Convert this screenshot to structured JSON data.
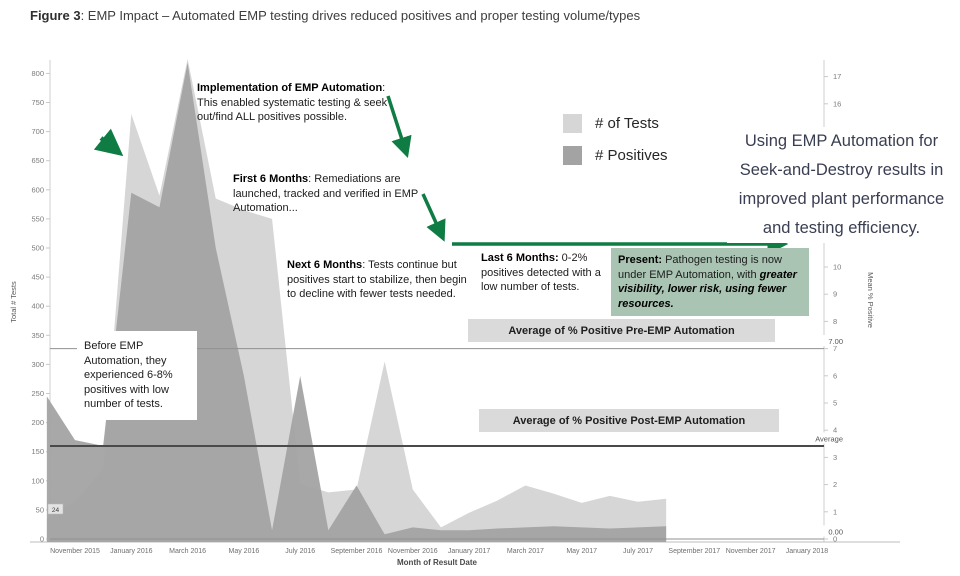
{
  "figure_title": {
    "label": "Figure 3",
    "text": ": EMP Impact – Automated EMP testing drives reduced positives and proper testing volume/types"
  },
  "insight_text": "Using EMP Automation for Seek-and-Destroy results in improved plant performance and testing efficiency.",
  "annotations": {
    "implementation": {
      "bold": "Implementation of EMP Automation",
      "rest": ": This enabled systematic testing & seek out/find ALL positives possible."
    },
    "first6": {
      "bold": "First 6 Months",
      "rest": ": Remediations are launched, tracked and verified in EMP Automation..."
    },
    "next6": {
      "bold": "Next 6 Months",
      "rest": ": Tests continue but positives start to stabilize, then begin to decline with fewer tests needed."
    },
    "last6": {
      "bold": "Last 6 Months:",
      "rest": " 0-2% positives detected with a low number of tests."
    },
    "present": {
      "bold": "Present:",
      "rest": " Pathogen testing is now under EMP Automation, with ",
      "italic": "greater visibility, lower risk, using fewer resources."
    },
    "before": "Before EMP Automation, they experienced 6-8% positives with low number of tests.",
    "pre_avg": "Average of % Positive Pre-EMP Automation",
    "post_avg": "Average of % Positive Post-EMP Automation"
  },
  "colors": {
    "arrow_green": "#0e7c43",
    "present_bg": "#a9c4b2",
    "tests_fill": "#d6d6d6",
    "positives_fill": "#a3a3a3",
    "avg_label_bg": "#dadada",
    "insight_text_color": "#3a3e52",
    "ref_line_pre": "#909090",
    "ref_line_post": "#4a4a4a"
  },
  "chart_data": {
    "type": "area",
    "title": "",
    "x_axis_title": "Month of Result Date",
    "y_left": {
      "title": "Total # Tests",
      "min": 0,
      "max": 800,
      "step": 50
    },
    "y_right": {
      "title": "Mean % Positive",
      "min": 0,
      "max": 17,
      "step": 1
    },
    "x_tick_labels": [
      "November 2015",
      "January 2016",
      "March 2016",
      "May 2016",
      "July 2016",
      "September 2016",
      "November 2016",
      "January 2017",
      "March 2017",
      "May 2017",
      "July 2017",
      "September 2017",
      "November 2017",
      "January 2018"
    ],
    "months": [
      "Oct 2015",
      "Nov 2015",
      "Dec 2015",
      "Jan 2016",
      "Feb 2016",
      "Mar 2016",
      "Apr 2016",
      "May 2016",
      "Jun 2016",
      "Jul 2016",
      "Aug 2016",
      "Sep 2016",
      "Oct 2016",
      "Nov 2016",
      "Dec 2016",
      "Jan 2017",
      "Feb 2017",
      "Mar 2017",
      "Apr 2017",
      "May 2017",
      "Jun 2017",
      "Jul 2017",
      "Aug 2017"
    ],
    "series": [
      {
        "name": "# of Tests",
        "color": "#d6d6d6",
        "values": [
          35,
          65,
          120,
          730,
          590,
          825,
          585,
          565,
          550,
          95,
          80,
          85,
          305,
          85,
          20,
          45,
          66,
          92,
          78,
          62,
          74,
          64,
          69
        ]
      },
      {
        "name": "# Positives",
        "color": "#a3a3a3",
        "values": [
          245,
          170,
          160,
          595,
          570,
          818,
          500,
          280,
          15,
          280,
          15,
          92,
          8,
          20,
          15,
          15,
          18,
          20,
          22,
          20,
          18,
          20,
          22
        ]
      }
    ],
    "ref_lines": [
      {
        "label": "7.00",
        "value": 7.0,
        "axis": "right",
        "style": "pre"
      },
      {
        "label": "Average",
        "value": 3.42,
        "axis": "right",
        "style": "post"
      },
      {
        "label": "0.00",
        "value": 0.0,
        "axis": "right",
        "style": "pre"
      }
    ],
    "first_point_label": "24",
    "legend_position": "top-center",
    "grid": false
  }
}
